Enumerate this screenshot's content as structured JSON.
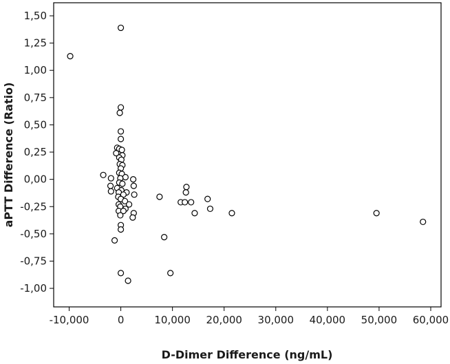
{
  "chart_data": {
    "type": "scatter",
    "xlabel": "D-Dimer Difference (ng/mL)",
    "ylabel": "aPTT Difference (Ratio)",
    "xlim": [
      -13000,
      62000
    ],
    "ylim": [
      -1.17,
      1.62
    ],
    "x_ticks": [
      -10000,
      0,
      10000,
      20000,
      30000,
      40000,
      50000,
      60000
    ],
    "x_tick_labels": [
      "-10,000",
      "0",
      "10,000",
      "20,000",
      "30,000",
      "40,000",
      "50,000",
      "60,000"
    ],
    "y_ticks": [
      -1.0,
      -0.75,
      -0.5,
      -0.25,
      0.0,
      0.25,
      0.5,
      0.75,
      1.0,
      1.25,
      1.5
    ],
    "y_tick_labels": [
      "-1,00",
      "-0,75",
      "-0,50",
      "-0,25",
      "0,00",
      "0,25",
      "0,50",
      "0,75",
      "1,00",
      "1,25",
      "1,50"
    ],
    "grid": false,
    "legend": "none",
    "marker": "open-circle",
    "points": [
      {
        "x": -9800,
        "y": 1.13
      },
      {
        "x": 0,
        "y": 1.39
      },
      {
        "x": 0,
        "y": 0.66
      },
      {
        "x": -200,
        "y": 0.61
      },
      {
        "x": 0,
        "y": 0.44
      },
      {
        "x": 0,
        "y": 0.37
      },
      {
        "x": -700,
        "y": 0.29
      },
      {
        "x": -300,
        "y": 0.28
      },
      {
        "x": 200,
        "y": 0.27
      },
      {
        "x": -900,
        "y": 0.24
      },
      {
        "x": 300,
        "y": 0.22
      },
      {
        "x": -300,
        "y": 0.2
      },
      {
        "x": 100,
        "y": 0.18
      },
      {
        "x": -200,
        "y": 0.14
      },
      {
        "x": 300,
        "y": 0.13
      },
      {
        "x": 0,
        "y": 0.1
      },
      {
        "x": -300,
        "y": 0.06
      },
      {
        "x": 200,
        "y": 0.05
      },
      {
        "x": -3400,
        "y": 0.04
      },
      {
        "x": 900,
        "y": 0.02
      },
      {
        "x": -100,
        "y": 0.01
      },
      {
        "x": -1900,
        "y": 0.01
      },
      {
        "x": 2400,
        "y": 0.0
      },
      {
        "x": -300,
        "y": -0.03
      },
      {
        "x": 300,
        "y": -0.04
      },
      {
        "x": -2000,
        "y": -0.06
      },
      {
        "x": 2500,
        "y": -0.06
      },
      {
        "x": -700,
        "y": -0.08
      },
      {
        "x": 100,
        "y": -0.1
      },
      {
        "x": -1900,
        "y": -0.11
      },
      {
        "x": -400,
        "y": -0.12
      },
      {
        "x": 1100,
        "y": -0.12
      },
      {
        "x": 500,
        "y": -0.14
      },
      {
        "x": 2600,
        "y": -0.14
      },
      {
        "x": -500,
        "y": -0.16
      },
      {
        "x": 7500,
        "y": -0.16
      },
      {
        "x": 0,
        "y": -0.18
      },
      {
        "x": 16800,
        "y": -0.18
      },
      {
        "x": 800,
        "y": -0.2
      },
      {
        "x": 11600,
        "y": -0.21
      },
      {
        "x": 12400,
        "y": -0.21
      },
      {
        "x": 13600,
        "y": -0.21
      },
      {
        "x": -400,
        "y": -0.23
      },
      {
        "x": 1600,
        "y": -0.23
      },
      {
        "x": -100,
        "y": -0.25
      },
      {
        "x": 900,
        "y": -0.27
      },
      {
        "x": 17300,
        "y": -0.27
      },
      {
        "x": -400,
        "y": -0.29
      },
      {
        "x": 500,
        "y": -0.29
      },
      {
        "x": 14300,
        "y": -0.31
      },
      {
        "x": 21500,
        "y": -0.31
      },
      {
        "x": 2500,
        "y": -0.31
      },
      {
        "x": 49500,
        "y": -0.31
      },
      {
        "x": -100,
        "y": -0.33
      },
      {
        "x": 2300,
        "y": -0.35
      },
      {
        "x": 58500,
        "y": -0.39
      },
      {
        "x": 0,
        "y": -0.42
      },
      {
        "x": 0,
        "y": -0.46
      },
      {
        "x": 8400,
        "y": -0.53
      },
      {
        "x": -1200,
        "y": -0.56
      },
      {
        "x": 12700,
        "y": -0.07
      },
      {
        "x": 12600,
        "y": -0.12
      },
      {
        "x": 0,
        "y": -0.86
      },
      {
        "x": 9600,
        "y": -0.86
      },
      {
        "x": 1400,
        "y": -0.93
      }
    ]
  }
}
